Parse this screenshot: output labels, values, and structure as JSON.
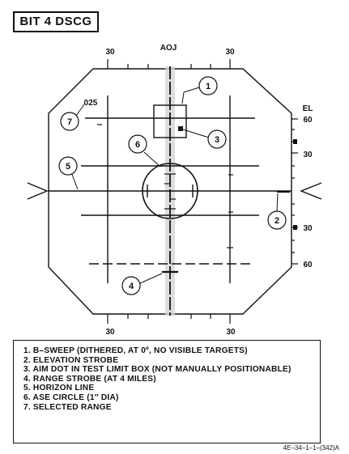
{
  "title": "BIT 4 DSCG",
  "scope": {
    "aoj_label": "AOJ",
    "top_left_label": "30",
    "top_right_label": "30",
    "bottom_left_label": "30",
    "bottom_right_label": "30",
    "el_label": "EL",
    "el_scale": [
      "60",
      "30",
      "30",
      "60"
    ],
    "selected_range_value": "025"
  },
  "callouts": [
    "1",
    "2",
    "3",
    "4",
    "5",
    "6",
    "7"
  ],
  "legend": [
    "1. B–SWEEP (DITHERED, AT 0º, NO VISIBLE TARGETS)",
    "2. ELEVATION STROBE",
    "3. AIM DOT IN TEST LIMIT BOX (NOT MANUALLY POSITIONABLE)",
    "4. RANGE STROBE (AT 4 MILES)",
    "5. HORIZON LINE",
    "6. ASE CIRCLE (1″ DIA)",
    "7. SELECTED RANGE"
  ],
  "figure_id": "4E–34–1–1–(342)A"
}
